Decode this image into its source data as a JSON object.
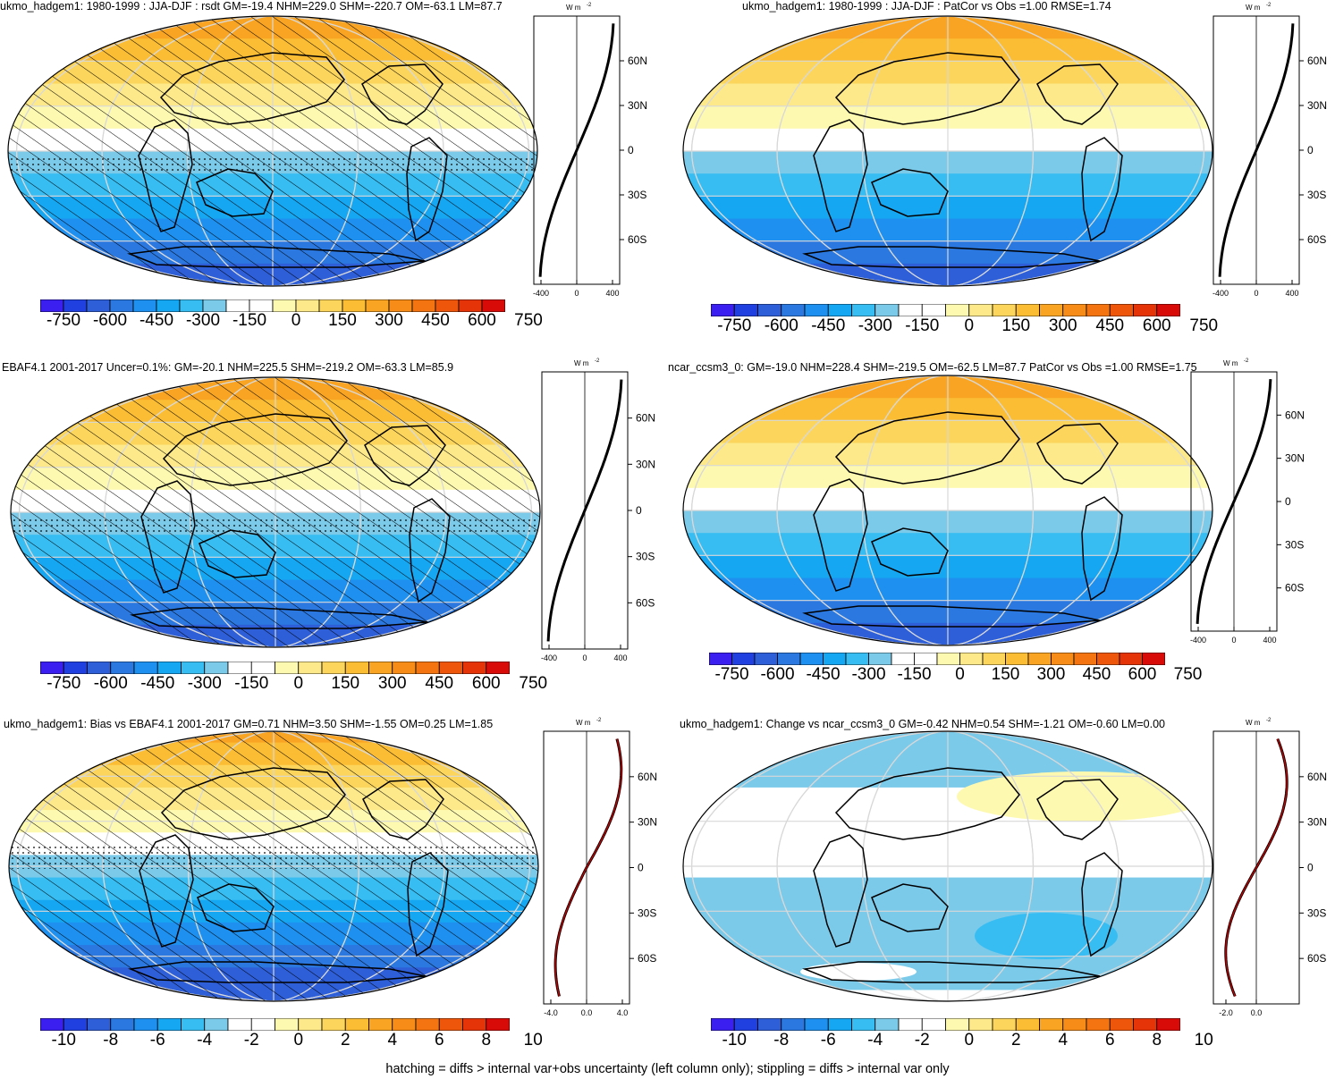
{
  "panels": [
    {
      "title": "ukmo_hadgem1: 1980-1999 : JJA-DJF : rsdt GM=-19.4 NHM=229.0 SHM=-220.7 OM=-63.1 LM=87.7",
      "colorbar": [
        "-750",
        "-600",
        "-450",
        "-300",
        "-150",
        "0",
        "150",
        "300",
        "450",
        "600",
        "750"
      ],
      "profile_xticks": [
        "-400",
        "0",
        "400"
      ],
      "profile_unit": "W m",
      "kind": "full",
      "hatch": true,
      "stipple": true
    },
    {
      "title": "ukmo_hadgem1: 1980-1999 : JJA-DJF : PatCor vs Obs =1.00 RMSE=1.74",
      "colorbar": [
        "-750",
        "-600",
        "-450",
        "-300",
        "-150",
        "0",
        "150",
        "300",
        "450",
        "600",
        "750"
      ],
      "profile_xticks": [
        "-400",
        "0",
        "400"
      ],
      "profile_unit": "W m",
      "kind": "full",
      "hatch": false,
      "stipple": false
    },
    {
      "title": "EBAF4.1 2001-2017 Uncer=0.1%: GM=-20.1 NHM=225.5 SHM=-219.2 OM=-63.3 LM=85.9",
      "colorbar": [
        "-750",
        "-600",
        "-450",
        "-300",
        "-150",
        "0",
        "150",
        "300",
        "450",
        "600",
        "750"
      ],
      "profile_xticks": [
        "-400",
        "0",
        "400"
      ],
      "profile_unit": "W m",
      "kind": "full",
      "hatch": true,
      "stipple": true
    },
    {
      "title": "ncar_ccsm3_0: GM=-19.0 NHM=228.4 SHM=-219.5 OM=-62.5 LM=87.7 PatCor vs Obs =1.00 RMSE=1.75",
      "colorbar": [
        "-750",
        "-600",
        "-450",
        "-300",
        "-150",
        "0",
        "150",
        "300",
        "450",
        "600",
        "750"
      ],
      "profile_xticks": [
        "-400",
        "0",
        "400"
      ],
      "profile_unit": "W m",
      "kind": "full",
      "hatch": false,
      "stipple": false
    },
    {
      "title": "ukmo_hadgem1: Bias vs EBAF4.1 2001-2017 GM=0.71 NHM=3.50 SHM=-1.55 OM=0.25 LM=1.85",
      "colorbar": [
        "-10",
        "-8",
        "-6",
        "-4",
        "-2",
        "0",
        "2",
        "4",
        "6",
        "8",
        "10"
      ],
      "profile_xticks": [
        "-4.0",
        "0.0",
        "4.0"
      ],
      "profile_unit": "W m",
      "kind": "bias",
      "hatch": true,
      "stipple": true
    },
    {
      "title": "ukmo_hadgem1: Change vs ncar_ccsm3_0 GM=-0.42 NHM=0.54 SHM=-1.21 OM=-0.60 LM=0.00",
      "colorbar": [
        "-10",
        "-8",
        "-6",
        "-4",
        "-2",
        "0",
        "2",
        "4",
        "6",
        "8",
        "10"
      ],
      "profile_xticks": [
        "-2.0",
        "0.0"
      ],
      "profile_unit": "W m",
      "kind": "change",
      "hatch": false,
      "stipple": false
    }
  ],
  "lat_labels": [
    "60N",
    "30N",
    "0",
    "30S",
    "60S"
  ],
  "unit_superscript": "-2",
  "colorbar_colors": [
    "#3a1ff0",
    "#2140e0",
    "#2e5fd9",
    "#2a78e0",
    "#1e90ef",
    "#16a7f2",
    "#38bdf2",
    "#7ccaea",
    "#ffffff",
    "#ffffff",
    "#fef9b0",
    "#fde98a",
    "#fcd55c",
    "#fbbd34",
    "#f9a523",
    "#f78d18",
    "#f37410",
    "#ee560c",
    "#e63409",
    "#d90b08"
  ],
  "footer": "hatching = diffs > internal var+obs uncertainty (left column only); stippling = diffs > internal var only"
}
